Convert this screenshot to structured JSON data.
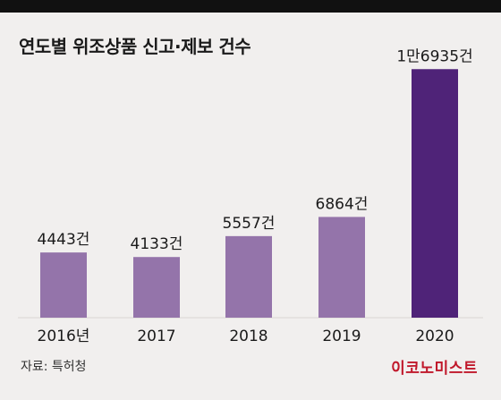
{
  "title": "연도별 위조상품 신고·제보 건수",
  "source": "자료: 특허청",
  "brand": "이코노미스트",
  "colors": {
    "bar": "#9474aa",
    "bar_highlight": "#4f2378",
    "background": "#f1efee",
    "brand": "#c0172a"
  },
  "chart_data": {
    "type": "bar",
    "categories": [
      "2016년",
      "2017",
      "2018",
      "2019",
      "2020"
    ],
    "values": [
      4443,
      4133,
      5557,
      6864,
      16935
    ],
    "data_labels": [
      "4443건",
      "4133건",
      "5557건",
      "6864건",
      "1만6935건"
    ],
    "highlight_index": 4,
    "ylim": [
      0,
      17500
    ]
  }
}
